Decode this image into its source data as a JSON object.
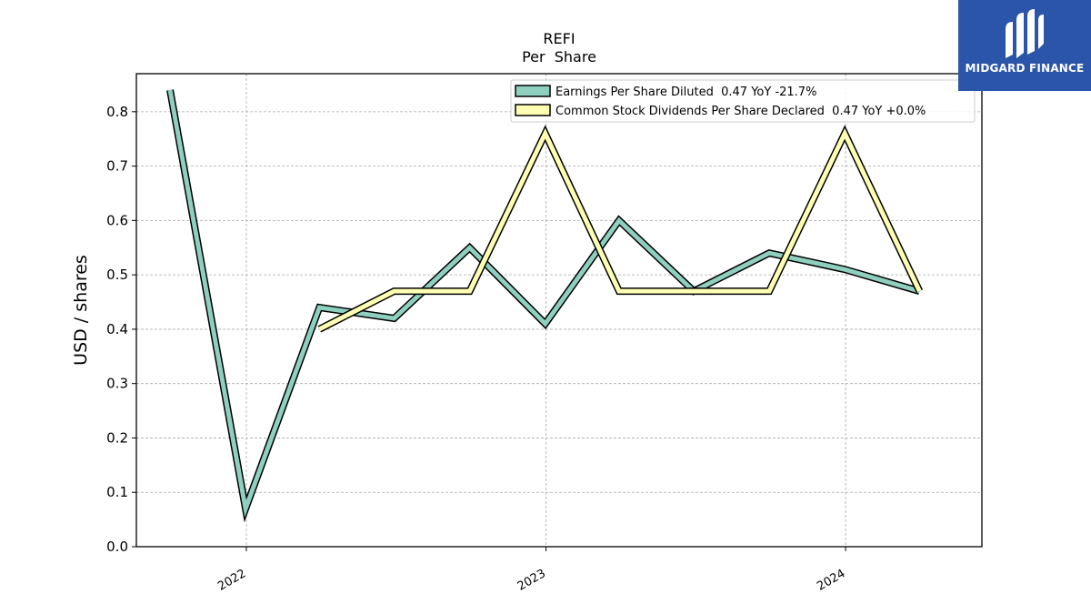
{
  "brand": {
    "name": "MIDGARD FINANCE",
    "bg_color": "#2b55a8",
    "icon": "midgard-logo-icon"
  },
  "chart_data": {
    "type": "line",
    "title": "REFI",
    "subtitle": "Per  Share",
    "xlabel": "",
    "ylabel": "USD / shares",
    "ylim": [
      0.0,
      0.87
    ],
    "xlim": [
      "2021-08-20",
      "2024-06-15"
    ],
    "yticks": [
      0.0,
      0.1,
      0.2,
      0.3,
      0.4,
      0.5,
      0.6,
      0.7,
      0.8
    ],
    "ytick_labels": [
      "0.0",
      "0.1",
      "0.2",
      "0.3",
      "0.4",
      "0.5",
      "0.6",
      "0.7",
      "0.8"
    ],
    "xticks": [
      "2022-01-01",
      "2023-01-01",
      "2024-01-01"
    ],
    "xtick_labels": [
      "2022",
      "2023",
      "2024"
    ],
    "grid": true,
    "legend_position": "top-right",
    "series": [
      {
        "name": "Earnings Per Share Diluted  0.47 YoY -21.7%",
        "color": "#8ecfbf",
        "x": [
          "2021-09-30",
          "2021-12-31",
          "2022-03-31",
          "2022-06-30",
          "2022-09-30",
          "2022-12-31",
          "2023-03-31",
          "2023-06-30",
          "2023-09-30",
          "2023-12-31",
          "2024-03-31"
        ],
        "y": [
          0.84,
          0.07,
          0.44,
          0.42,
          0.55,
          0.41,
          0.6,
          0.47,
          0.54,
          0.51,
          0.47
        ]
      },
      {
        "name": "Common Stock Dividends Per Share Declared  0.47 YoY +0.0%",
        "color": "#ffffb3",
        "x": [
          "2022-03-31",
          "2022-06-30",
          "2022-09-30",
          "2022-12-31",
          "2023-03-31",
          "2023-06-30",
          "2023-09-30",
          "2023-12-31",
          "2024-03-31"
        ],
        "y": [
          0.4,
          0.47,
          0.47,
          0.76,
          0.47,
          0.47,
          0.47,
          0.76,
          0.47
        ]
      }
    ]
  }
}
